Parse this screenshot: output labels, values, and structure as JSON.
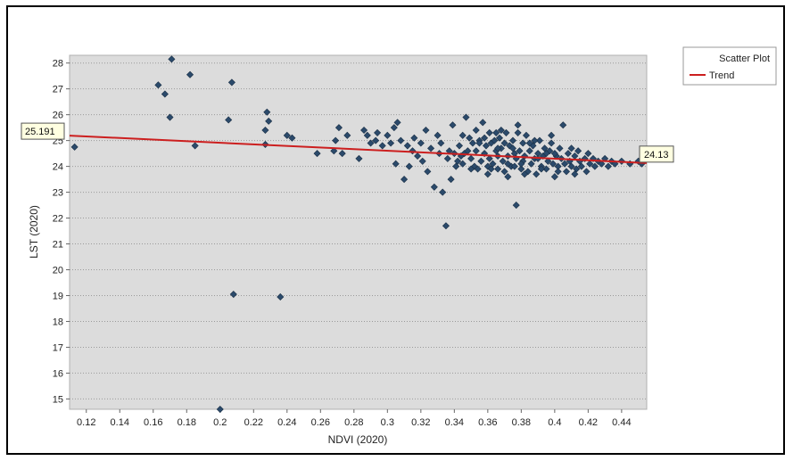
{
  "chart_data": {
    "type": "scatter",
    "xlabel": "NDVI (2020)",
    "ylabel": "LST (2020)",
    "xlim": [
      0.11,
      0.455
    ],
    "ylim": [
      14.6,
      28.3
    ],
    "x_ticks": [
      "0.12",
      "0.14",
      "0.16",
      "0.18",
      "0.2",
      "0.22",
      "0.24",
      "0.26",
      "0.28",
      "0.3",
      "0.32",
      "0.34",
      "0.36",
      "0.38",
      "0.4",
      "0.42",
      "0.44"
    ],
    "y_ticks": [
      "15",
      "16",
      "17",
      "18",
      "19",
      "20",
      "21",
      "22",
      "23",
      "24",
      "25",
      "26",
      "27",
      "28"
    ],
    "grid": true,
    "legend_position": "top-right",
    "legend": [
      {
        "label": "Scatter Plot",
        "kind": "scatter"
      },
      {
        "label": "Trend",
        "kind": "line"
      }
    ],
    "colors": {
      "points": "#2b4a6b",
      "trend": "#cc1f1f",
      "plot_bg": "#dcdcdc",
      "callout_bg": "#ffffe1"
    },
    "trend": {
      "x": [
        0.11,
        0.455
      ],
      "y": [
        25.191,
        24.13
      ],
      "start_label": "25.191",
      "end_label": "24.13"
    },
    "points": [
      [
        0.113,
        24.75
      ],
      [
        0.163,
        27.15
      ],
      [
        0.167,
        26.8
      ],
      [
        0.17,
        25.9
      ],
      [
        0.171,
        28.15
      ],
      [
        0.182,
        27.55
      ],
      [
        0.185,
        24.8
      ],
      [
        0.2,
        14.6
      ],
      [
        0.205,
        25.8
      ],
      [
        0.207,
        27.25
      ],
      [
        0.208,
        19.05
      ],
      [
        0.227,
        24.85
      ],
      [
        0.227,
        25.4
      ],
      [
        0.228,
        26.1
      ],
      [
        0.229,
        25.75
      ],
      [
        0.236,
        18.95
      ],
      [
        0.24,
        25.2
      ],
      [
        0.243,
        25.1
      ],
      [
        0.258,
        24.5
      ],
      [
        0.268,
        24.6
      ],
      [
        0.269,
        25.0
      ],
      [
        0.271,
        25.5
      ],
      [
        0.273,
        24.5
      ],
      [
        0.276,
        25.2
      ],
      [
        0.283,
        24.3
      ],
      [
        0.286,
        25.4
      ],
      [
        0.288,
        25.2
      ],
      [
        0.29,
        24.9
      ],
      [
        0.293,
        25.0
      ],
      [
        0.294,
        25.3
      ],
      [
        0.297,
        24.8
      ],
      [
        0.3,
        25.2
      ],
      [
        0.302,
        24.9
      ],
      [
        0.304,
        25.5
      ],
      [
        0.305,
        24.1
      ],
      [
        0.306,
        25.7
      ],
      [
        0.308,
        25.0
      ],
      [
        0.31,
        23.5
      ],
      [
        0.312,
        24.8
      ],
      [
        0.313,
        24.0
      ],
      [
        0.315,
        24.6
      ],
      [
        0.316,
        25.1
      ],
      [
        0.318,
        24.4
      ],
      [
        0.32,
        24.9
      ],
      [
        0.321,
        24.2
      ],
      [
        0.323,
        25.4
      ],
      [
        0.324,
        23.8
      ],
      [
        0.326,
        24.7
      ],
      [
        0.328,
        23.2
      ],
      [
        0.33,
        25.2
      ],
      [
        0.331,
        24.5
      ],
      [
        0.332,
        24.9
      ],
      [
        0.333,
        23.0
      ],
      [
        0.335,
        21.7
      ],
      [
        0.336,
        24.3
      ],
      [
        0.337,
        24.6
      ],
      [
        0.338,
        23.5
      ],
      [
        0.339,
        25.6
      ],
      [
        0.341,
        24.0
      ],
      [
        0.342,
        24.2
      ],
      [
        0.343,
        24.8
      ],
      [
        0.344,
        24.4
      ],
      [
        0.345,
        25.2
      ],
      [
        0.346,
        24.5
      ],
      [
        0.347,
        25.9
      ],
      [
        0.348,
        24.6
      ],
      [
        0.349,
        25.1
      ],
      [
        0.35,
        24.3
      ],
      [
        0.351,
        24.9
      ],
      [
        0.352,
        24.0
      ],
      [
        0.353,
        25.4
      ],
      [
        0.353,
        24.6
      ],
      [
        0.354,
        23.9
      ],
      [
        0.355,
        25.0
      ],
      [
        0.356,
        24.2
      ],
      [
        0.357,
        25.7
      ],
      [
        0.358,
        24.5
      ],
      [
        0.359,
        24.8
      ],
      [
        0.36,
        23.7
      ],
      [
        0.361,
        24.3
      ],
      [
        0.361,
        25.3
      ],
      [
        0.362,
        24.9
      ],
      [
        0.363,
        24.1
      ],
      [
        0.364,
        25.0
      ],
      [
        0.365,
        24.6
      ],
      [
        0.366,
        24.4
      ],
      [
        0.366,
        23.9
      ],
      [
        0.367,
        25.1
      ],
      [
        0.368,
        24.7
      ],
      [
        0.369,
        24.2
      ],
      [
        0.37,
        24.9
      ],
      [
        0.371,
        25.3
      ],
      [
        0.372,
        23.6
      ],
      [
        0.372,
        24.4
      ],
      [
        0.373,
        24.8
      ],
      [
        0.374,
        24.0
      ],
      [
        0.375,
        25.0
      ],
      [
        0.376,
        24.5
      ],
      [
        0.377,
        22.5
      ],
      [
        0.377,
        24.3
      ],
      [
        0.378,
        25.6
      ],
      [
        0.379,
        24.6
      ],
      [
        0.38,
        23.9
      ],
      [
        0.381,
        24.2
      ],
      [
        0.381,
        24.9
      ],
      [
        0.382,
        24.4
      ],
      [
        0.383,
        25.2
      ],
      [
        0.384,
        23.8
      ],
      [
        0.385,
        24.6
      ],
      [
        0.386,
        24.1
      ],
      [
        0.387,
        24.8
      ],
      [
        0.388,
        24.3
      ],
      [
        0.389,
        23.7
      ],
      [
        0.39,
        24.5
      ],
      [
        0.391,
        25.0
      ],
      [
        0.392,
        24.0
      ],
      [
        0.393,
        24.4
      ],
      [
        0.394,
        24.7
      ],
      [
        0.395,
        23.9
      ],
      [
        0.396,
        24.2
      ],
      [
        0.397,
        24.6
      ],
      [
        0.398,
        24.9
      ],
      [
        0.399,
        24.1
      ],
      [
        0.4,
        23.6
      ],
      [
        0.401,
        24.4
      ],
      [
        0.402,
        24.0
      ],
      [
        0.403,
        24.7
      ],
      [
        0.404,
        24.3
      ],
      [
        0.405,
        25.6
      ],
      [
        0.406,
        24.1
      ],
      [
        0.407,
        23.8
      ],
      [
        0.408,
        24.5
      ],
      [
        0.409,
        24.2
      ],
      [
        0.41,
        24.0
      ],
      [
        0.412,
        24.4
      ],
      [
        0.413,
        23.9
      ],
      [
        0.414,
        24.6
      ],
      [
        0.415,
        24.2
      ],
      [
        0.416,
        24.0
      ],
      [
        0.418,
        24.3
      ],
      [
        0.419,
        23.8
      ],
      [
        0.42,
        24.5
      ],
      [
        0.421,
        24.1
      ],
      [
        0.423,
        24.3
      ],
      [
        0.424,
        24.0
      ],
      [
        0.426,
        24.2
      ],
      [
        0.428,
        24.1
      ],
      [
        0.43,
        24.3
      ],
      [
        0.432,
        24.0
      ],
      [
        0.434,
        24.2
      ],
      [
        0.436,
        24.1
      ],
      [
        0.44,
        24.2
      ],
      [
        0.445,
        24.1
      ],
      [
        0.45,
        24.2
      ],
      [
        0.452,
        24.1
      ],
      [
        0.34,
        24.5
      ],
      [
        0.355,
        24.9
      ],
      [
        0.365,
        25.3
      ],
      [
        0.375,
        24.7
      ],
      [
        0.385,
        24.9
      ],
      [
        0.395,
        24.5
      ],
      [
        0.36,
        24.0
      ],
      [
        0.37,
        23.8
      ],
      [
        0.38,
        24.1
      ],
      [
        0.39,
        24.3
      ],
      [
        0.4,
        24.5
      ],
      [
        0.41,
        24.7
      ],
      [
        0.358,
        25.1
      ],
      [
        0.368,
        25.4
      ],
      [
        0.378,
        25.3
      ],
      [
        0.388,
        25.0
      ],
      [
        0.398,
        25.2
      ],
      [
        0.362,
        23.9
      ],
      [
        0.372,
        24.1
      ],
      [
        0.382,
        23.7
      ],
      [
        0.392,
        23.9
      ],
      [
        0.402,
        23.8
      ],
      [
        0.412,
        23.7
      ],
      [
        0.35,
        23.9
      ],
      [
        0.345,
        24.1
      ],
      [
        0.366,
        24.7
      ],
      [
        0.376,
        24.0
      ]
    ]
  }
}
